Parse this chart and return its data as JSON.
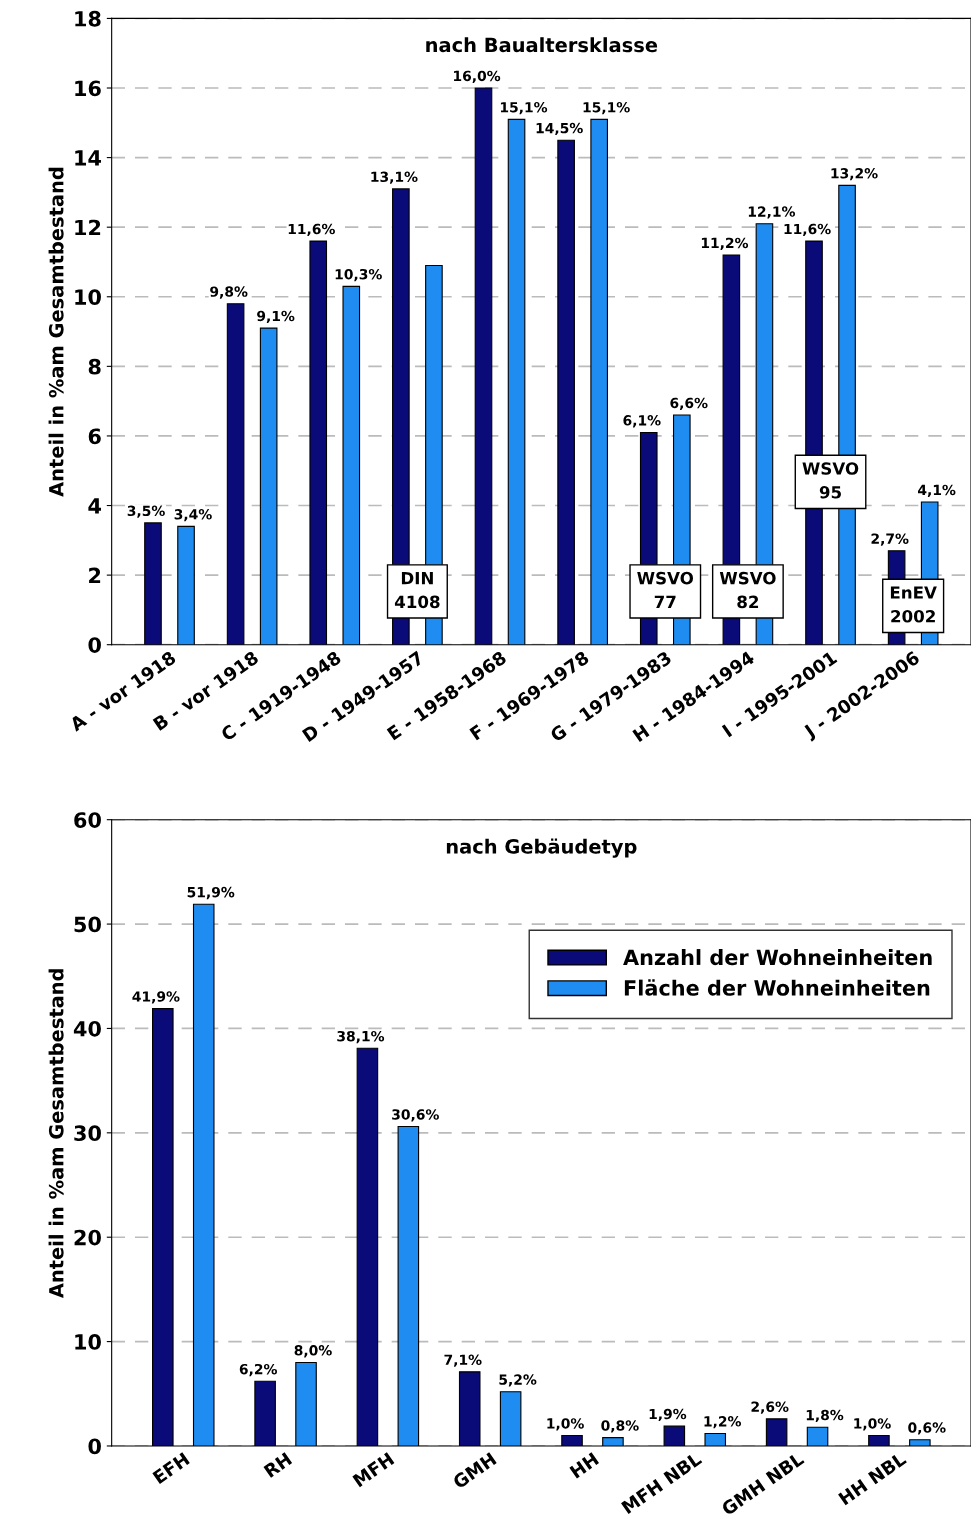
{
  "chart_data": [
    {
      "type": "bar",
      "title": "nach Baualtersklasse",
      "ylabel": "Anteil in %am Gesamtbestand",
      "categories": [
        "A - vor 1918",
        "B - vor 1918",
        "C - 1919-1948",
        "D - 1949-1957",
        "E - 1958-1968",
        "F - 1969-1978",
        "G - 1979-1983",
        "H - 1984-1994",
        "I - 1995-2001",
        "J - 2002-2006"
      ],
      "series": [
        {
          "color": "#0a0a78",
          "values": [
            3.5,
            9.8,
            11.6,
            13.1,
            16.0,
            14.5,
            6.1,
            11.2,
            11.6,
            2.7
          ],
          "value_labels": [
            "3,5%",
            "9,8%",
            "11,6%",
            "13,1%",
            "16,0%",
            "14,5%",
            "6,1%",
            "11,2%",
            "11,6%",
            "2,7%"
          ]
        },
        {
          "color": "#1e8cf0",
          "values": [
            3.4,
            9.1,
            10.3,
            10.9,
            15.1,
            15.1,
            6.6,
            12.1,
            13.2,
            4.1
          ],
          "value_labels": [
            "3,4%",
            "9,1%",
            "10,3%",
            null,
            "15,1%",
            "15,1%",
            "6,6%",
            "12,1%",
            "13,2%",
            "4,1%"
          ]
        }
      ],
      "ylim": [
        0,
        18
      ],
      "yticks": [
        0,
        2,
        4,
        6,
        8,
        10,
        12,
        14,
        16,
        18
      ],
      "grid": "y",
      "annotations": [
        "DIN\n4108",
        "WSVO\n77",
        "WSVO\n82",
        "WSVO\n95",
        "EnEV\n2002"
      ]
    },
    {
      "type": "bar",
      "title": "nach Gebäudetyp",
      "ylabel": "Anteil in %am Gesamtbestand",
      "categories": [
        "EFH",
        "RH",
        "MFH",
        "GMH",
        "HH",
        "MFH NBL",
        "GMH NBL",
        "HH NBL"
      ],
      "series": [
        {
          "name": "Anzahl der Wohneinheiten",
          "color": "#0a0a78",
          "values": [
            41.9,
            6.2,
            38.1,
            7.1,
            1.0,
            1.9,
            2.6,
            1.0
          ],
          "value_labels": [
            "41,9%",
            "6,2%",
            "38,1%",
            "7,1%",
            "1,0%",
            "1,9%",
            "2,6%",
            "1,0%"
          ]
        },
        {
          "name": "Fläche der Wohneinheiten",
          "color": "#1e8cf0",
          "values": [
            51.9,
            8.0,
            30.6,
            5.2,
            0.8,
            1.2,
            1.8,
            0.6
          ],
          "value_labels": [
            "51,9%",
            "8,0%",
            "30,6%",
            "5,2%",
            "0,8%",
            "1,2%",
            "1,8%",
            "0,6%"
          ]
        }
      ],
      "ylim": [
        0,
        60
      ],
      "yticks": [
        0,
        10,
        20,
        30,
        40,
        50,
        60
      ],
      "grid": "y",
      "legend": "top right"
    }
  ]
}
